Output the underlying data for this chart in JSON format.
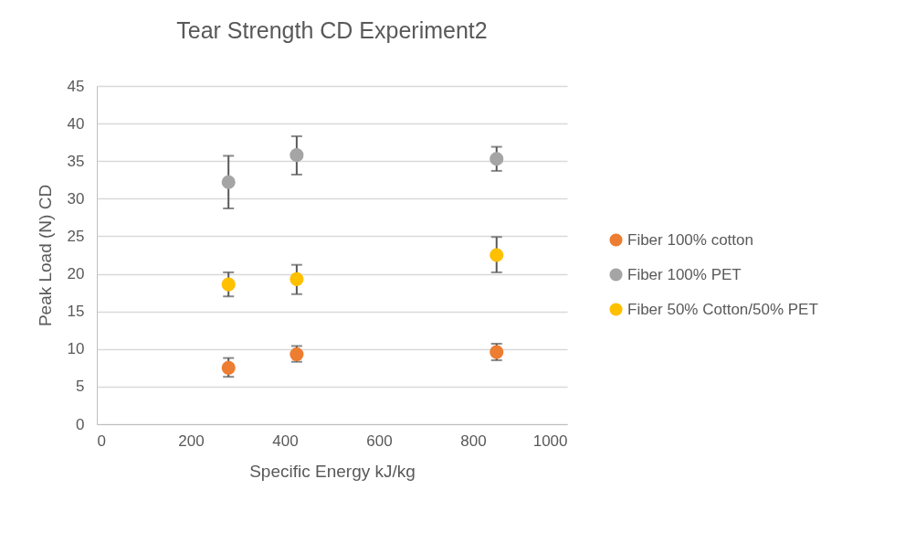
{
  "chart_data": {
    "type": "scatter",
    "title": "Tear Strength CD Experiment2",
    "xlabel": "Specific Energy kJ/kg",
    "ylabel": "Peak Load (N) CD",
    "x": [
      280,
      425,
      850
    ],
    "xlim": [
      0,
      1000
    ],
    "xticks": [
      0,
      200,
      400,
      600,
      800,
      1000
    ],
    "ylim": [
      0,
      45
    ],
    "yticks": [
      0,
      5,
      10,
      15,
      20,
      25,
      30,
      35,
      40,
      45
    ],
    "grid": "y",
    "legend": "right",
    "marker": "circle",
    "series": [
      {
        "name": "Fiber 100% cotton",
        "color": "#ed7d31",
        "values": [
          7.5,
          9.3,
          9.6
        ],
        "errors": [
          [
            6.3,
            8.8
          ],
          [
            8.3,
            10.4
          ],
          [
            8.5,
            10.7
          ]
        ]
      },
      {
        "name": "Fiber 100% PET",
        "color": "#a5a5a5",
        "values": [
          32.2,
          35.8,
          35.3
        ],
        "errors": [
          [
            28.7,
            35.7
          ],
          [
            33.2,
            38.3
          ],
          [
            33.7,
            36.9
          ]
        ]
      },
      {
        "name": "Fiber 50% Cotton/50% PET",
        "color": "#ffc000",
        "values": [
          18.6,
          19.3,
          22.5
        ],
        "errors": [
          [
            17.0,
            20.2
          ],
          [
            17.3,
            21.2
          ],
          [
            20.2,
            24.9
          ]
        ]
      }
    ]
  }
}
